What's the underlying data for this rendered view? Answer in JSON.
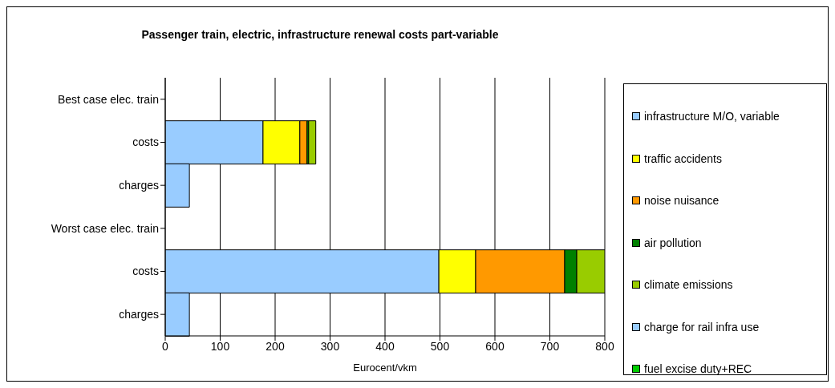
{
  "chart_data": {
    "type": "bar",
    "orientation": "horizontal",
    "stacked": true,
    "title": "Passenger train, electric, infrastructure renewal costs part-variable",
    "xlabel": "Eurocent/vkm",
    "categories": [
      "Best case elec. train",
      "costs",
      "charges",
      "Worst case elec. train",
      "costs",
      "charges"
    ],
    "series": [
      {
        "name": "infrastructure M/O, variable",
        "color": "#99ccff",
        "values": [
          null,
          178,
          null,
          null,
          498,
          null
        ]
      },
      {
        "name": "traffic accidents",
        "color": "#ffff00",
        "values": [
          null,
          67,
          null,
          null,
          67,
          null
        ]
      },
      {
        "name": "noise nuisance",
        "color": "#ff9900",
        "values": [
          null,
          13,
          null,
          null,
          162,
          null
        ]
      },
      {
        "name": "air pollution",
        "color": "#008000",
        "values": [
          null,
          3,
          null,
          null,
          22,
          null
        ]
      },
      {
        "name": "climate emissions",
        "color": "#99cc00",
        "values": [
          null,
          13,
          null,
          null,
          51,
          null
        ]
      },
      {
        "name": "charge for rail infra use",
        "color": "#99ccff",
        "values": [
          null,
          null,
          44,
          null,
          null,
          44
        ]
      },
      {
        "name": "fuel excise duty+REC",
        "color": "#00cc00",
        "values": [
          null,
          null,
          null,
          null,
          null,
          null
        ]
      }
    ],
    "xlim": [
      0,
      800
    ],
    "xticks": [
      0,
      100,
      200,
      300,
      400,
      500,
      600,
      700,
      800
    ],
    "grid": "x",
    "legend": "right"
  }
}
